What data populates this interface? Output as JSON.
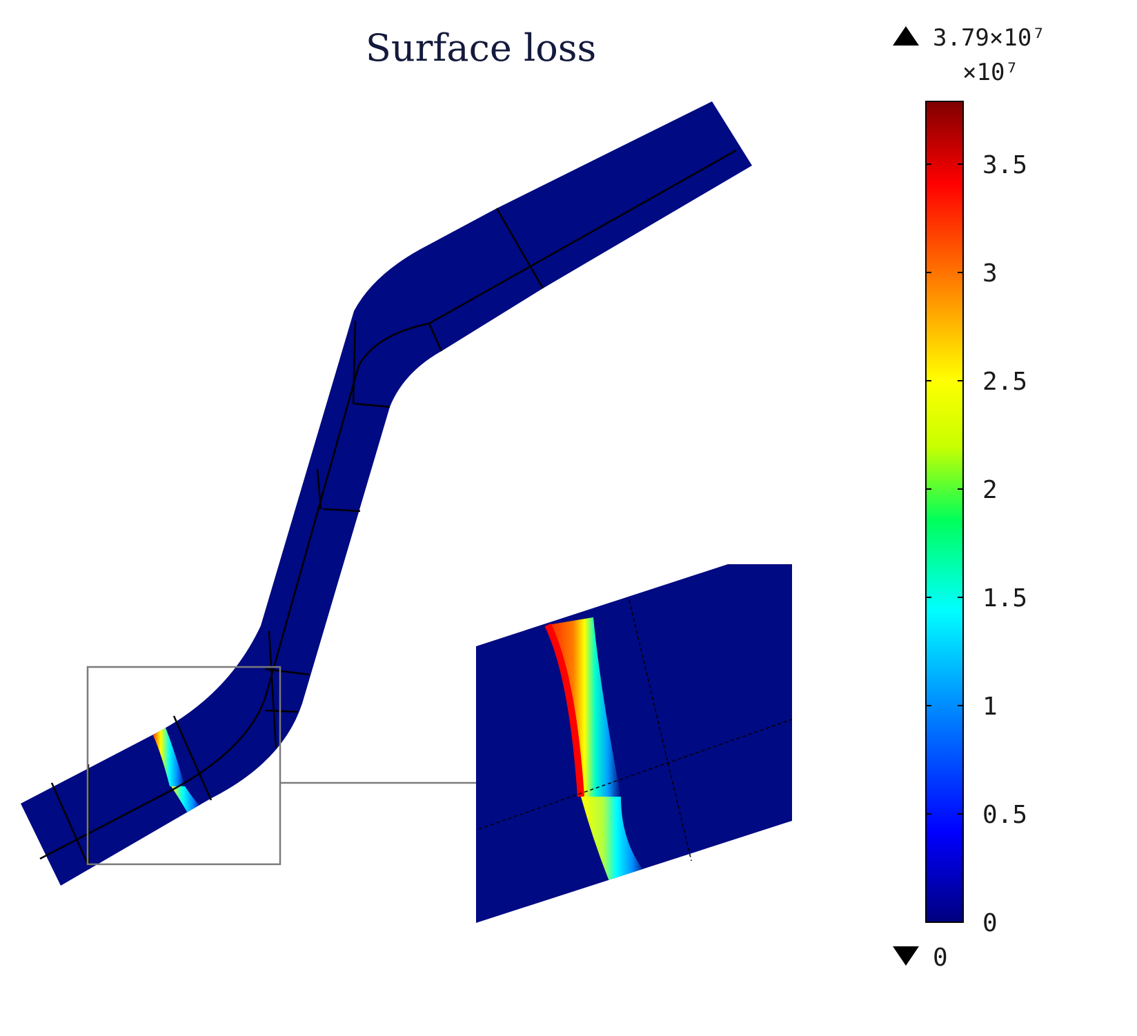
{
  "figure": {
    "title": "Surface loss"
  },
  "colorbar": {
    "max_label": "3.79×10⁷",
    "min_label": "0",
    "exponent_label": "×10⁷",
    "max_value": 3.79,
    "min_value": 0,
    "ticks": [
      {
        "value": 3.5,
        "label": "3.5"
      },
      {
        "value": 3.0,
        "label": "3"
      },
      {
        "value": 2.5,
        "label": "2.5"
      },
      {
        "value": 2.0,
        "label": "2"
      },
      {
        "value": 1.5,
        "label": "1.5"
      },
      {
        "value": 1.0,
        "label": "1"
      },
      {
        "value": 0.5,
        "label": "0.5"
      },
      {
        "value": 0.0,
        "label": "0"
      }
    ],
    "colormap": [
      "#00007f",
      "#0000ff",
      "#007fff",
      "#00ffff",
      "#00ff5a",
      "#c8ff00",
      "#ffff00",
      "#ff7f00",
      "#ff0000",
      "#7f0000"
    ]
  },
  "colors": {
    "background_field": "#000a82",
    "mesh_lines": "#000000",
    "callout_lines": "#7a7a7a"
  }
}
